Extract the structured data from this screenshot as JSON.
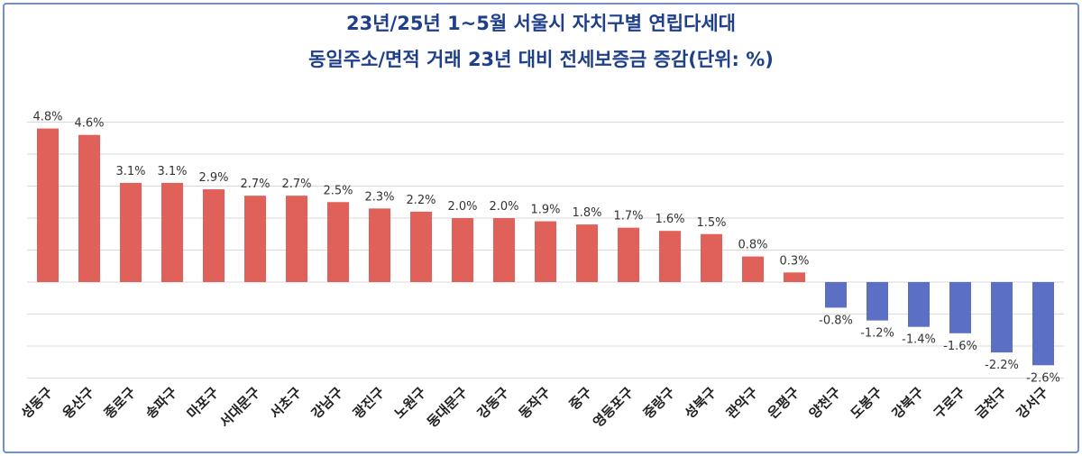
{
  "chart_data": {
    "type": "bar",
    "title_line1": "23년/25년 1~5월 서울시 자치구별 연립다세대",
    "title_line2": "동일주소/면적 거래 23년 대비 전세보증금 증감(단위: %)",
    "categories": [
      "성동구",
      "용산구",
      "종로구",
      "송파구",
      "마포구",
      "서대문구",
      "서초구",
      "강남구",
      "광진구",
      "노원구",
      "동대문구",
      "강동구",
      "동작구",
      "중구",
      "영등포구",
      "중랑구",
      "성북구",
      "관악구",
      "은평구",
      "양천구",
      "도봉구",
      "강북구",
      "구로구",
      "금천구",
      "강서구"
    ],
    "values": [
      4.8,
      4.6,
      3.1,
      3.1,
      2.9,
      2.7,
      2.7,
      2.5,
      2.3,
      2.2,
      2.0,
      2.0,
      1.9,
      1.8,
      1.7,
      1.6,
      1.5,
      0.8,
      0.3,
      -0.8,
      -1.2,
      -1.4,
      -1.6,
      -2.2,
      -2.6
    ],
    "labels": [
      "4.8%",
      "4.6%",
      "3.1%",
      "3.1%",
      "2.9%",
      "2.7%",
      "2.7%",
      "2.5%",
      "2.3%",
      "2.2%",
      "2.0%",
      "2.0%",
      "1.9%",
      "1.8%",
      "1.7%",
      "1.6%",
      "1.5%",
      "0.8%",
      "0.3%",
      "-0.8%",
      "-1.2%",
      "-1.4%",
      "-1.6%",
      "-2.2%",
      "-2.6%"
    ],
    "ylim": [
      -3,
      5
    ],
    "grid": true,
    "colors": {
      "positive": "#e0605a",
      "negative": "#5b6fc4",
      "grid": "#d9d9d9"
    }
  }
}
